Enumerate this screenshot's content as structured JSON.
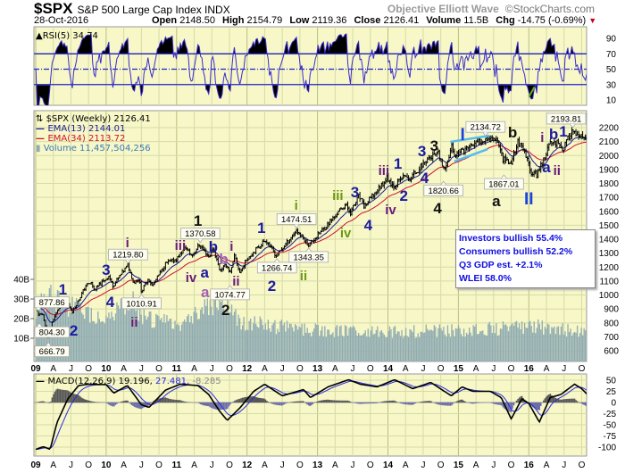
{
  "header": {
    "symbol": "$SPX",
    "name": "S&P 500 Large Cap Index",
    "exchange": "INDX",
    "brand_left": "Objective Elliott Wave",
    "brand_right": "©StockCharts.com",
    "date": "28-Oct-2016",
    "open_label": "Open",
    "open": "2148.50",
    "high_label": "High",
    "high": "2154.79",
    "low_label": "Low",
    "low": "2119.36",
    "close_label": "Close",
    "close": "2126.41",
    "volume_label": "Volume",
    "volume": "11.5B",
    "chg_label": "Chg",
    "chg": "-14.75 (-0.69%)",
    "chg_icon": "down-triangle-icon"
  },
  "legend": {
    "rsi": "RSI(5) 34.74",
    "price": "$SPX (Weekly) 2126.41",
    "ema13": "EMA(13) 2144.01",
    "ema34": "EMA(34) 2113.72",
    "volume": "Volume 11,457,504,256",
    "macd_name": "MACD(12,26,9)",
    "macd_value": "19.196,",
    "macd_signal": "27.481,",
    "macd_hist": "-8.285"
  },
  "info_box": [
    "Investors bullish 55.4%",
    "Consumers bullish 52.2%",
    "Q3 GDP est. +2.1%",
    "WLEI 58.0%"
  ],
  "colors": {
    "plot_bg": "#f7f7c8",
    "grid": "#d6dba6",
    "rsi_line": "#3a2ccc",
    "ema13": "#1a1a9a",
    "ema34": "#d0102a",
    "volume": "#8fabb2",
    "macd": "#000000",
    "signal": "#2a2ae0",
    "hist_pos": "#555555",
    "hist_neg": "#6b6ba8",
    "trendline": "#55bbee"
  },
  "chart_data": {
    "type": "line",
    "x_axis": {
      "years": [
        "09",
        "10",
        "11",
        "12",
        "13",
        "14",
        "15",
        "16"
      ],
      "months": [
        "A",
        "J",
        "O"
      ],
      "range": [
        "2009-01-02",
        "2016-10-28"
      ]
    },
    "rsi": {
      "ticks": [
        90,
        70,
        50,
        30,
        10
      ],
      "overbought": 70,
      "oversold": 30,
      "mid": 50,
      "ylim": [
        5,
        100
      ]
    },
    "price": {
      "scale": "linear",
      "ticks": [
        2200,
        2100,
        2000,
        1900,
        1800,
        1700,
        1600,
        1500,
        1400,
        1300,
        1200,
        1100,
        1000,
        900,
        800,
        700,
        600
      ],
      "ylim": [
        580,
        2315
      ],
      "weekly_close_anchors": [
        [
          "2009-01-02",
          931
        ],
        [
          "2009-01-09",
          890
        ],
        [
          "2009-01-16",
          850
        ],
        [
          "2009-02-06",
          868
        ],
        [
          "2009-02-27",
          735
        ],
        [
          "2009-03-06",
          683
        ],
        [
          "2009-03-27",
          815
        ],
        [
          "2009-05-08",
          929
        ],
        [
          "2009-06-12",
          946
        ],
        [
          "2009-07-10",
          880
        ],
        [
          "2009-09-18",
          1068
        ],
        [
          "2009-10-16",
          1087
        ],
        [
          "2009-10-30",
          1036
        ],
        [
          "2010-01-15",
          1136
        ],
        [
          "2010-02-05",
          1066
        ],
        [
          "2010-04-23",
          1217
        ],
        [
          "2010-05-21",
          1087
        ],
        [
          "2010-06-18",
          1117
        ],
        [
          "2010-07-02",
          1022
        ],
        [
          "2010-08-06",
          1121
        ],
        [
          "2010-08-27",
          1064
        ],
        [
          "2010-11-05",
          1225
        ],
        [
          "2010-12-31",
          1258
        ],
        [
          "2011-02-18",
          1343
        ],
        [
          "2011-03-18",
          1279
        ],
        [
          "2011-04-29",
          1363
        ],
        [
          "2011-06-17",
          1271
        ],
        [
          "2011-07-08",
          1344
        ],
        [
          "2011-08-12",
          1178
        ],
        [
          "2011-09-16",
          1216
        ],
        [
          "2011-10-07",
          1155
        ],
        [
          "2011-10-28",
          1285
        ],
        [
          "2011-11-25",
          1158
        ],
        [
          "2011-12-30",
          1258
        ],
        [
          "2012-04-06",
          1398
        ],
        [
          "2012-06-01",
          1278
        ],
        [
          "2012-09-14",
          1465
        ],
        [
          "2012-11-16",
          1359
        ],
        [
          "2012-12-31",
          1426
        ],
        [
          "2013-05-24",
          1649
        ],
        [
          "2013-06-21",
          1592
        ],
        [
          "2013-08-02",
          1709
        ],
        [
          "2013-08-30",
          1633
        ],
        [
          "2013-12-27",
          1841
        ],
        [
          "2014-01-31",
          1782
        ],
        [
          "2014-04-04",
          1865
        ],
        [
          "2014-04-11",
          1815
        ],
        [
          "2014-07-25",
          1978
        ],
        [
          "2014-09-19",
          2010
        ],
        [
          "2014-10-17",
          1886
        ],
        [
          "2014-11-28",
          2067
        ],
        [
          "2014-12-12",
          2002
        ],
        [
          "2015-03-06",
          2071
        ],
        [
          "2015-05-22",
          2126
        ],
        [
          "2015-07-17",
          2126
        ],
        [
          "2015-08-21",
          1971
        ],
        [
          "2015-08-28",
          1988
        ],
        [
          "2015-09-25",
          1931
        ],
        [
          "2015-11-06",
          2099
        ],
        [
          "2015-12-11",
          2012
        ],
        [
          "2016-01-15",
          1880
        ],
        [
          "2016-02-12",
          1864
        ],
        [
          "2016-04-22",
          2091
        ],
        [
          "2016-06-03",
          2099
        ],
        [
          "2016-06-24",
          2037
        ],
        [
          "2016-08-12",
          2184
        ],
        [
          "2016-09-09",
          2128
        ],
        [
          "2016-10-28",
          2126
        ]
      ],
      "price_tags": [
        {
          "label": "877.86",
          "date": "2009-01-06",
          "price": 877.86,
          "side": "above"
        },
        {
          "label": "804.30",
          "date": "2009-01-20",
          "price": 804.3,
          "side": "below"
        },
        {
          "label": "666.79",
          "date": "2009-03-06",
          "price": 666.79,
          "side": "below"
        },
        {
          "label": "1219.80",
          "date": "2010-04-23",
          "price": 1219.8,
          "side": "above"
        },
        {
          "label": "1010.91",
          "date": "2010-07-02",
          "price": 1010.91,
          "side": "below"
        },
        {
          "label": "1370.58",
          "date": "2011-05-02",
          "price": 1370.58,
          "side": "above"
        },
        {
          "label": "1074.77",
          "date": "2011-10-04",
          "price": 1074.77,
          "side": "below"
        },
        {
          "label": "1266.74",
          "date": "2012-06-04",
          "price": 1266.74,
          "side": "below"
        },
        {
          "label": "1474.51",
          "date": "2012-09-14",
          "price": 1474.51,
          "side": "above"
        },
        {
          "label": "1343.35",
          "date": "2012-11-16",
          "price": 1343.35,
          "side": "below"
        },
        {
          "label": "1820.66",
          "date": "2014-10-15",
          "price": 1820.66,
          "side": "below"
        },
        {
          "label": "2134.72",
          "date": "2015-05-20",
          "price": 2134.72,
          "side": "above"
        },
        {
          "label": "1867.01",
          "date": "2015-08-24",
          "price": 1867.01,
          "side": "below"
        },
        {
          "label": "2193.81",
          "date": "2016-08-15",
          "price": 2193.81,
          "side": "above"
        }
      ],
      "wave_labels": [
        {
          "text": "1",
          "date": "2009-05-20",
          "price": 1004,
          "color": "#1a1aa0"
        },
        {
          "text": "2",
          "date": "2009-06-18",
          "price": 748,
          "color": "#1a1aa0"
        },
        {
          "text": "3",
          "date": "2010-01-01",
          "price": 1183,
          "color": "#1a1aa0"
        },
        {
          "text": "4",
          "date": "2010-01-22",
          "price": 952,
          "color": "#1a1aa0"
        },
        {
          "text": "i",
          "date": "2010-04-20",
          "price": 1343,
          "color": "#6a1a7a"
        },
        {
          "text": "ii",
          "date": "2010-05-25",
          "price": 811,
          "color": "#6a1a7a"
        },
        {
          "text": "iii",
          "date": "2011-01-20",
          "price": 1400,
          "color": "#6a1a7a"
        },
        {
          "text": "iv",
          "date": "2011-03-15",
          "price": 1131,
          "color": "#6a1a7a"
        },
        {
          "text": "1",
          "date": "2011-04-20",
          "price": 1496,
          "color": "#111111"
        },
        {
          "text": "a",
          "date": "2011-05-25",
          "price": 1164,
          "color": "#1a1aa0"
        },
        {
          "text": "b",
          "date": "2011-07-08",
          "price": 1368,
          "color": "#1a1aa0"
        },
        {
          "text": "a",
          "date": "2011-07-08",
          "price": 1022,
          "color": "#a060b0"
        },
        {
          "text": "b",
          "date": "2011-09-01",
          "price": 1260,
          "color": "#a060b0"
        },
        {
          "text": "i",
          "date": "2011-10-12",
          "price": 1355,
          "color": "#6a1a7a"
        },
        {
          "text": "ii",
          "date": "2011-11-05",
          "price": 1068,
          "color": "#6a1a7a"
        },
        {
          "text": "2",
          "date": "2011-09-12",
          "price": 895,
          "color": "#111111"
        },
        {
          "text": "1",
          "date": "2012-03-15",
          "price": 1483,
          "color": "#1a1aa0"
        },
        {
          "text": "2",
          "date": "2012-05-08",
          "price": 1068,
          "color": "#1a1aa0"
        },
        {
          "text": "i",
          "date": "2012-09-12",
          "price": 1611,
          "color": "#6a9a10"
        },
        {
          "text": "ii",
          "date": "2012-10-20",
          "price": 1144,
          "color": "#6a9a10"
        },
        {
          "text": "iii",
          "date": "2013-04-15",
          "price": 1720,
          "color": "#6a9a10"
        },
        {
          "text": "iv",
          "date": "2013-05-25",
          "price": 1451,
          "color": "#6a9a10"
        },
        {
          "text": "3",
          "date": "2013-07-12",
          "price": 1739,
          "color": "#1a1aa0"
        },
        {
          "text": "4",
          "date": "2013-09-20",
          "price": 1503,
          "color": "#1a1aa0"
        },
        {
          "text": "iii",
          "date": "2013-12-10",
          "price": 1899,
          "color": "#6a1a7a"
        },
        {
          "text": "iv",
          "date": "2014-01-15",
          "price": 1618,
          "color": "#6a1a7a"
        },
        {
          "text": "1",
          "date": "2014-02-22",
          "price": 1944,
          "color": "#1a1aa0"
        },
        {
          "text": "2",
          "date": "2014-03-22",
          "price": 1714,
          "color": "#1a1aa0"
        },
        {
          "text": "3",
          "date": "2014-06-25",
          "price": 2034,
          "color": "#1a1aa0"
        },
        {
          "text": "4",
          "date": "2014-07-08",
          "price": 1803,
          "color": "#1a1aa0"
        },
        {
          "text": "3",
          "date": "2014-08-28",
          "price": 2072,
          "color": "#111111"
        },
        {
          "text": "4",
          "date": "2014-09-15",
          "price": 1624,
          "color": "#111111"
        },
        {
          "text": "I",
          "date": "2015-04-15",
          "price": 2264,
          "color": "#1a40e0"
        },
        {
          "text": "a",
          "date": "2015-07-15",
          "price": 1675,
          "color": "#111111"
        },
        {
          "text": "b",
          "date": "2015-10-08",
          "price": 2168,
          "color": "#111111"
        },
        {
          "text": "II",
          "date": "2016-01-01",
          "price": 1688,
          "color": "#1a40e0"
        },
        {
          "text": "i",
          "date": "2016-03-10",
          "price": 2136,
          "color": "#6a1a7a"
        },
        {
          "text": "a",
          "date": "2016-04-01",
          "price": 1918,
          "color": "#1a1aa0"
        },
        {
          "text": "b",
          "date": "2016-05-08",
          "price": 2155,
          "color": "#1a1aa0"
        },
        {
          "text": "ii",
          "date": "2016-05-25",
          "price": 1899,
          "color": "#6a1a7a"
        },
        {
          "text": "1",
          "date": "2016-06-28",
          "price": 2328,
          "color": "#1a1aa0"
        }
      ],
      "trendlines": [
        {
          "from": [
            "2014-11-20",
            2098
          ],
          "to": [
            "2015-06-10",
            2142
          ]
        },
        {
          "from": [
            "2014-12-10",
            1957
          ],
          "to": [
            "2015-06-01",
            2046
          ]
        }
      ]
    },
    "volume": {
      "ticks": [
        "40B",
        "30B",
        "20B",
        "10B"
      ],
      "tick_values": [
        40,
        30,
        20,
        10
      ],
      "unit": "B",
      "level_anchors": [
        [
          "2009-01-02",
          25
        ],
        [
          "2009-03-06",
          33
        ],
        [
          "2009-06-01",
          27
        ],
        [
          "2010-01-01",
          20
        ],
        [
          "2010-05-21",
          28
        ],
        [
          "2010-08-01",
          20
        ],
        [
          "2011-01-01",
          17
        ],
        [
          "2011-08-12",
          30
        ],
        [
          "2011-12-01",
          18
        ],
        [
          "2012-06-01",
          16
        ],
        [
          "2013-01-01",
          14
        ],
        [
          "2014-01-01",
          13
        ],
        [
          "2015-08-28",
          15
        ],
        [
          "2016-02-12",
          16
        ],
        [
          "2016-10-28",
          13
        ]
      ]
    },
    "macd": {
      "ticks": [
        50,
        25,
        0,
        -25,
        -50,
        -75,
        -100
      ],
      "ylim": [
        -112,
        68
      ],
      "anchors": [
        [
          "2009-01-02",
          -105
        ],
        [
          "2009-02-10",
          -99
        ],
        [
          "2009-03-15",
          -105
        ],
        [
          "2009-04-20",
          -45
        ],
        [
          "2009-06-15",
          8
        ],
        [
          "2009-08-10",
          38
        ],
        [
          "2009-10-01",
          41
        ],
        [
          "2010-01-01",
          40
        ],
        [
          "2010-02-10",
          21
        ],
        [
          "2010-04-20",
          38
        ],
        [
          "2010-07-01",
          -5
        ],
        [
          "2010-08-10",
          -11
        ],
        [
          "2010-11-05",
          28
        ],
        [
          "2011-01-20",
          41
        ],
        [
          "2011-04-20",
          38
        ],
        [
          "2011-06-15",
          18
        ],
        [
          "2011-08-10",
          -19
        ],
        [
          "2011-09-20",
          -40
        ],
        [
          "2011-11-25",
          -12
        ],
        [
          "2012-02-05",
          25
        ],
        [
          "2012-04-01",
          41
        ],
        [
          "2012-07-01",
          15
        ],
        [
          "2012-10-20",
          29
        ],
        [
          "2012-11-25",
          11
        ],
        [
          "2013-02-25",
          35
        ],
        [
          "2013-06-10",
          51
        ],
        [
          "2013-08-10",
          41
        ],
        [
          "2013-11-05",
          35
        ],
        [
          "2014-02-05",
          51
        ],
        [
          "2014-05-08",
          31
        ],
        [
          "2014-08-10",
          45
        ],
        [
          "2014-11-25",
          15
        ],
        [
          "2015-01-20",
          35
        ],
        [
          "2015-03-15",
          25
        ],
        [
          "2015-06-15",
          25
        ],
        [
          "2015-08-10",
          11
        ],
        [
          "2015-10-01",
          -37
        ],
        [
          "2015-11-25",
          8
        ],
        [
          "2016-01-01",
          -2
        ],
        [
          "2016-02-25",
          -44
        ],
        [
          "2016-04-20",
          11
        ],
        [
          "2016-06-15",
          18
        ],
        [
          "2016-08-25",
          41
        ],
        [
          "2016-10-01",
          31
        ],
        [
          "2016-10-28",
          19
        ]
      ]
    }
  }
}
